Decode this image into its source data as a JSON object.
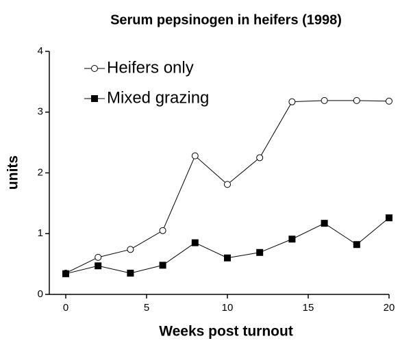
{
  "chart_data": {
    "type": "line",
    "title": "Serum pepsinogen in heifers (1998)",
    "xlabel": "Weeks post turnout",
    "ylabel": "units",
    "x": [
      0,
      2,
      4,
      6,
      8,
      10,
      12,
      14,
      16,
      18,
      20
    ],
    "series": [
      {
        "name": "Heifers only",
        "color": "#000000",
        "marker": "open-circle",
        "values": [
          0.35,
          0.61,
          0.74,
          1.05,
          2.28,
          1.81,
          2.25,
          3.17,
          3.19,
          3.19,
          3.18
        ]
      },
      {
        "name": "Mixed grazing",
        "color": "#000000",
        "marker": "filled-square",
        "values": [
          0.34,
          0.47,
          0.35,
          0.48,
          0.85,
          0.6,
          0.69,
          0.91,
          1.17,
          0.82,
          1.26
        ]
      }
    ],
    "xlim": [
      0,
      20
    ],
    "xticks": [
      0,
      5,
      10,
      15,
      20
    ],
    "ylim": [
      0,
      4
    ],
    "yticks": [
      0,
      1,
      2,
      3,
      4
    ],
    "grid": false,
    "legend": "upper left"
  }
}
